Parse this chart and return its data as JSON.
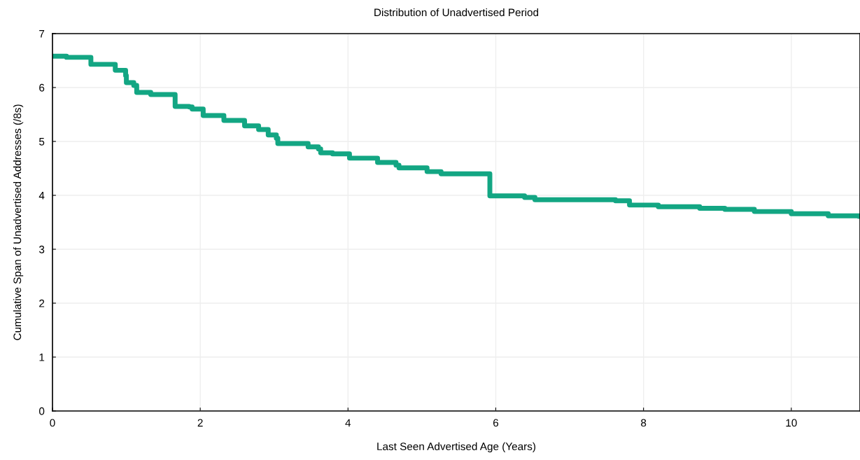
{
  "chart_data": {
    "type": "step",
    "title": "Distribution of Unadvertised Period",
    "xlabel": "Last Seen Advertised Age (Years)",
    "ylabel": "Cumulative Span of Unadvertised Addresses (/8s)",
    "xlim": [
      0,
      10.93
    ],
    "ylim": [
      0,
      7
    ],
    "xticks": [
      0,
      2,
      4,
      6,
      8,
      10
    ],
    "yticks": [
      0,
      1,
      2,
      3,
      4,
      5,
      6,
      7
    ],
    "grid": true,
    "marker": "none",
    "line_style": "solid",
    "series": [
      {
        "color": "#13a683",
        "x": [
          0,
          0.19,
          0.52,
          0.85,
          0.99,
          1.0,
          1.1,
          1.14,
          1.33,
          1.66,
          1.85,
          1.89,
          2.04,
          2.32,
          2.6,
          2.79,
          2.92,
          3.03,
          3.05,
          3.46,
          3.6,
          3.63,
          3.79,
          4.02,
          4.4,
          4.65,
          4.69,
          5.07,
          5.26,
          5.92,
          6.39,
          6.53,
          7.62,
          7.81,
          8.2,
          8.76,
          9.1,
          9.5,
          10.0,
          10.5,
          10.93
        ],
        "values": [
          6.58,
          6.56,
          6.43,
          6.32,
          6.22,
          6.09,
          6.04,
          5.91,
          5.87,
          5.65,
          5.64,
          5.6,
          5.48,
          5.39,
          5.29,
          5.22,
          5.12,
          5.06,
          4.96,
          4.9,
          4.86,
          4.79,
          4.77,
          4.69,
          4.61,
          4.56,
          4.51,
          4.44,
          4.4,
          3.99,
          3.96,
          3.92,
          3.9,
          3.82,
          3.79,
          3.76,
          3.74,
          3.7,
          3.66,
          3.62,
          3.61
        ]
      }
    ]
  }
}
